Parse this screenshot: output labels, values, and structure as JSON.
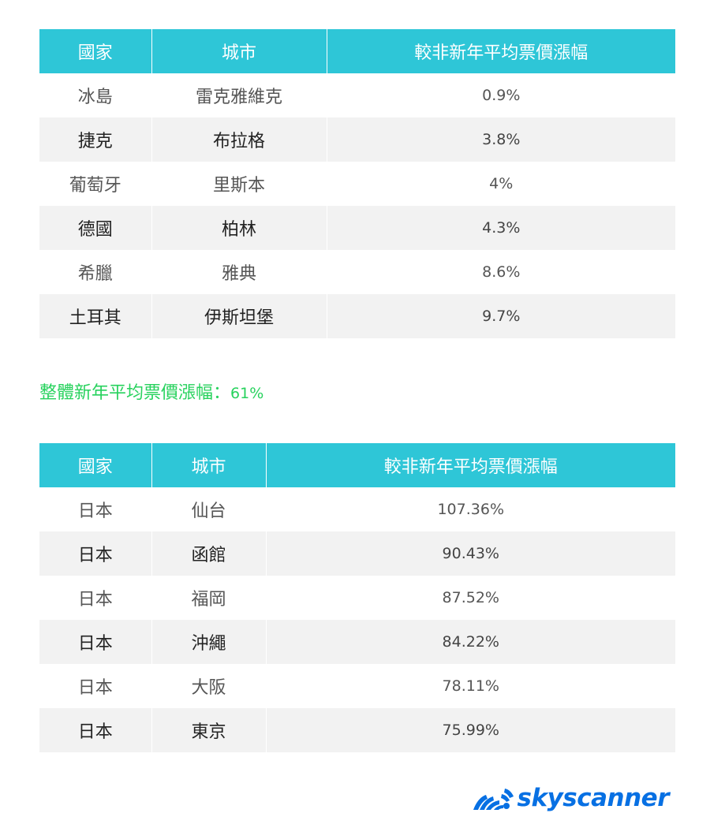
{
  "table1": {
    "headers": [
      "國家",
      "城市",
      "較非新年平均票價漲幅"
    ],
    "rows": [
      {
        "country": "冰島",
        "city": "雷克雅維克",
        "change": "0.9%"
      },
      {
        "country": "捷克",
        "city": "布拉格",
        "change": "3.8%"
      },
      {
        "country": "葡萄牙",
        "city": "里斯本",
        "change": "4%"
      },
      {
        "country": "德國",
        "city": "柏林",
        "change": "4.3%"
      },
      {
        "country": "希臘",
        "city": "雅典",
        "change": "8.6%"
      },
      {
        "country": "土耳其",
        "city": "伊斯坦堡",
        "change": "9.7%"
      }
    ]
  },
  "summary": {
    "label": "整體新年平均票價漲幅：",
    "value": "61%",
    "color": "#27d25d"
  },
  "table2": {
    "headers": [
      "國家",
      "城市",
      "較非新年平均票價漲幅"
    ],
    "rows": [
      {
        "country": "日本",
        "city": "仙台",
        "change": "107.36%"
      },
      {
        "country": "日本",
        "city": "函館",
        "change": "90.43%"
      },
      {
        "country": "日本",
        "city": "福岡",
        "change": "87.52%"
      },
      {
        "country": "日本",
        "city": "沖繩",
        "change": "84.22%"
      },
      {
        "country": "日本",
        "city": "大阪",
        "change": "78.11%"
      },
      {
        "country": "日本",
        "city": "東京",
        "change": "75.99%"
      }
    ]
  },
  "logo": {
    "text": "skyscanner",
    "icon": "skyscanner-sunrise-icon",
    "color": "#0770e3"
  },
  "colors": {
    "header_bg": "#2ec6d7",
    "stripe_bg": "#f2f2f2"
  }
}
